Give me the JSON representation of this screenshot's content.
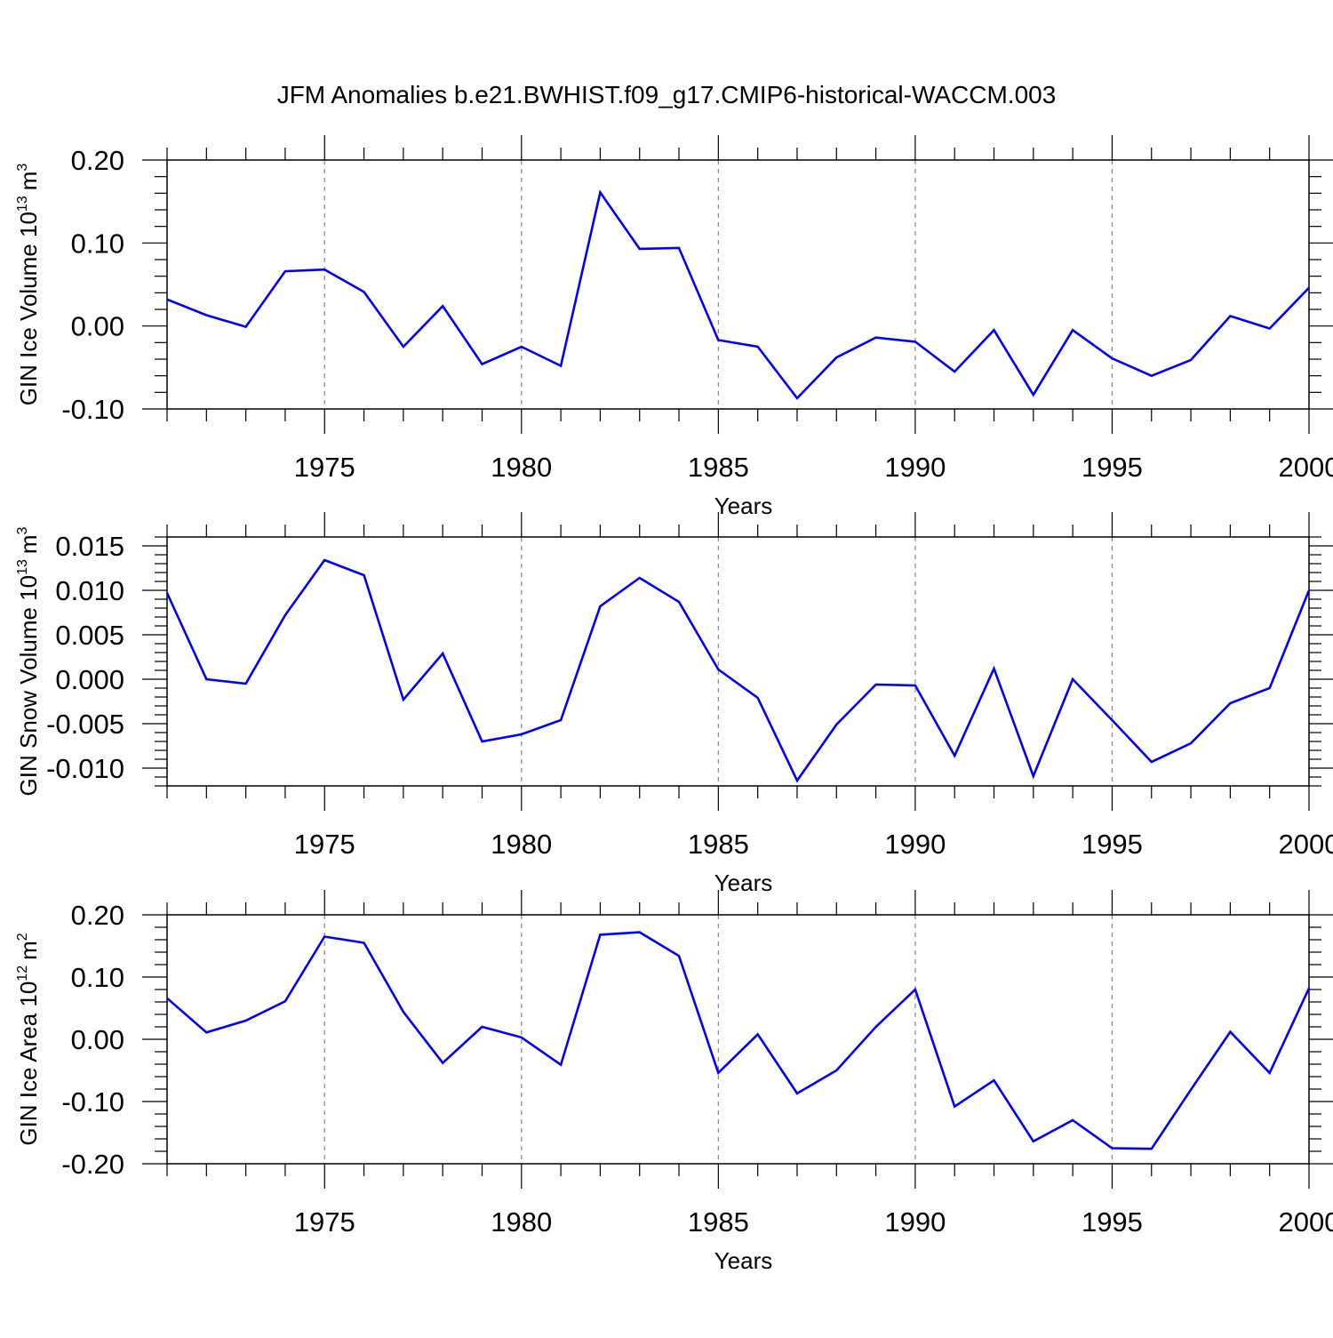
{
  "figure": {
    "title": "JFM Anomalies b.e21.BWHIST.f09_g17.CMIP6-historical-WACCM.003"
  },
  "chart_data": [
    {
      "type": "line",
      "name": "ice-volume",
      "ylabel": "GIN Ice Volume 10",
      "ylabel_exp": "13",
      "ylabel_unit": "m",
      "ylabel_unit_exp": "3",
      "xlabel": "Years",
      "xlim": [
        1971,
        2000
      ],
      "ylim": [
        -0.1,
        0.2
      ],
      "yticks": [
        -0.1,
        0.0,
        0.1,
        0.2
      ],
      "ytick_labels": [
        "-0.10",
        "0.00",
        "0.10",
        "0.20"
      ],
      "yminor_step": 0.02,
      "xticks": [
        1975,
        1980,
        1985,
        1990,
        1995,
        2000
      ],
      "xtick_labels": [
        "1975",
        "1980",
        "1985",
        "1990",
        "1995",
        "2000"
      ],
      "grid_x": [
        1975,
        1980,
        1985,
        1990,
        1995
      ],
      "series": [
        {
          "name": "GIN Ice Volume",
          "color": "#0000ff",
          "x": [
            1971,
            1972,
            1973,
            1974,
            1975,
            1976,
            1977,
            1978,
            1979,
            1980,
            1981,
            1982,
            1983,
            1984,
            1985,
            1986,
            1987,
            1988,
            1989,
            1990,
            1991,
            1992,
            1993,
            1994,
            1995,
            1996,
            1997,
            1998,
            1999,
            2000
          ],
          "values": [
            0.032,
            0.013,
            -0.001,
            0.066,
            0.068,
            0.041,
            -0.025,
            0.024,
            -0.046,
            -0.025,
            -0.048,
            0.161,
            0.093,
            0.094,
            -0.017,
            -0.025,
            -0.087,
            -0.038,
            -0.014,
            -0.019,
            -0.055,
            -0.005,
            -0.083,
            -0.005,
            -0.039,
            -0.06,
            -0.041,
            0.012,
            -0.003,
            0.046
          ]
        }
      ]
    },
    {
      "type": "line",
      "name": "snow-volume",
      "ylabel": "GIN Snow Volume 10",
      "ylabel_exp": "13",
      "ylabel_unit": "m",
      "ylabel_unit_exp": "3",
      "xlabel": "Years",
      "xlim": [
        1971,
        2000
      ],
      "ylim": [
        -0.012,
        0.016
      ],
      "yticks": [
        -0.01,
        -0.005,
        0.0,
        0.005,
        0.01,
        0.015
      ],
      "ytick_labels": [
        "-0.010",
        "-0.005",
        "0.000",
        "0.005",
        "0.010",
        "0.015"
      ],
      "yminor_step": 0.001,
      "xticks": [
        1975,
        1980,
        1985,
        1990,
        1995,
        2000
      ],
      "xtick_labels": [
        "1975",
        "1980",
        "1985",
        "1990",
        "1995",
        "2000"
      ],
      "grid_x": [
        1980,
        1985,
        1990,
        1995
      ],
      "series": [
        {
          "name": "GIN Snow Volume",
          "color": "#0000ff",
          "x": [
            1971,
            1972,
            1973,
            1974,
            1975,
            1976,
            1977,
            1978,
            1979,
            1980,
            1981,
            1982,
            1983,
            1984,
            1985,
            1986,
            1987,
            1988,
            1989,
            1990,
            1991,
            1992,
            1993,
            1994,
            1995,
            1996,
            1997,
            1998,
            1999,
            2000
          ],
          "values": [
            0.0097,
            0.0,
            -0.0005,
            0.0072,
            0.0134,
            0.0117,
            -0.0023,
            0.0029,
            -0.007,
            -0.0062,
            -0.0046,
            0.0082,
            0.0114,
            0.0087,
            0.0011,
            -0.0021,
            -0.0114,
            -0.0051,
            -0.0006,
            -0.0007,
            -0.0086,
            0.0012,
            -0.0109,
            0.0,
            -0.0046,
            -0.0093,
            -0.0072,
            -0.0027,
            -0.001,
            0.01
          ]
        }
      ]
    },
    {
      "type": "line",
      "name": "ice-area",
      "ylabel": "GIN Ice Area 10",
      "ylabel_exp": "12",
      "ylabel_unit": "m",
      "ylabel_unit_exp": "2",
      "xlabel": "Years",
      "xlim": [
        1971,
        2000
      ],
      "ylim": [
        -0.2,
        0.2
      ],
      "yticks": [
        -0.2,
        -0.1,
        0.0,
        0.1,
        0.2
      ],
      "ytick_labels": [
        "-0.20",
        "-0.10",
        "0.00",
        "0.10",
        "0.20"
      ],
      "yminor_step": 0.02,
      "xticks": [
        1975,
        1980,
        1985,
        1990,
        1995,
        2000
      ],
      "xtick_labels": [
        "1975",
        "1980",
        "1985",
        "1990",
        "1995",
        "2000"
      ],
      "grid_x": [
        1975,
        1980,
        1985,
        1990,
        1995
      ],
      "series": [
        {
          "name": "GIN Ice Area",
          "color": "#0000ff",
          "x": [
            1971,
            1972,
            1973,
            1974,
            1975,
            1976,
            1977,
            1978,
            1979,
            1980,
            1981,
            1982,
            1983,
            1984,
            1985,
            1986,
            1987,
            1988,
            1989,
            1990,
            1991,
            1992,
            1993,
            1994,
            1995,
            1996,
            1997,
            1998,
            1999,
            2000
          ],
          "values": [
            0.066,
            0.011,
            0.03,
            0.061,
            0.165,
            0.155,
            0.044,
            -0.038,
            0.02,
            0.003,
            -0.041,
            0.168,
            0.172,
            0.134,
            -0.054,
            0.008,
            -0.087,
            -0.05,
            0.02,
            0.08,
            -0.108,
            -0.066,
            -0.164,
            -0.13,
            -0.175,
            -0.176,
            -0.081,
            0.012,
            -0.054,
            0.082
          ]
        }
      ]
    }
  ]
}
